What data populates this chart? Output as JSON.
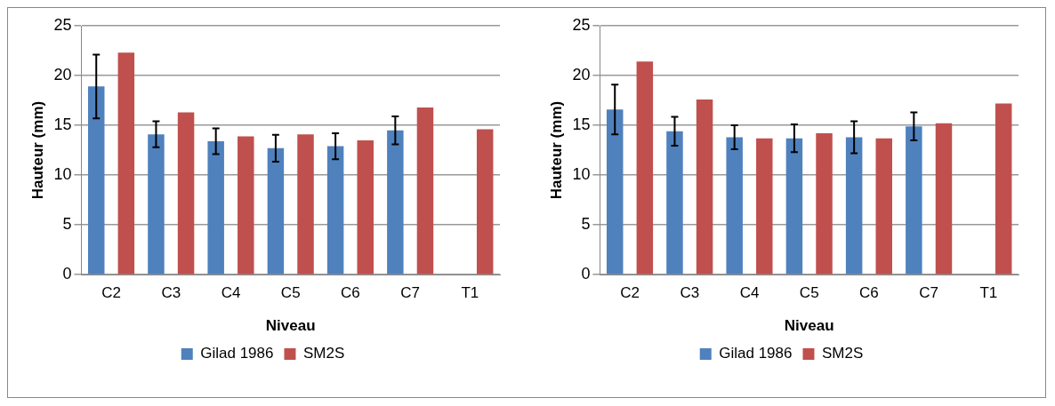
{
  "chart_data": [
    {
      "type": "bar",
      "xlabel": "Niveau",
      "ylabel": "Hauteur (mm)",
      "categories": [
        "C2",
        "C3",
        "C4",
        "C5",
        "C6",
        "C7",
        "T1"
      ],
      "ylim": [
        0,
        25
      ],
      "yticks": [
        0,
        5,
        10,
        15,
        20,
        25
      ],
      "grid": "y",
      "legend": "bottom",
      "series": [
        {
          "name": "Gilad 1986",
          "color": "#4f81bd",
          "values": [
            18.9,
            14.1,
            13.4,
            12.7,
            12.9,
            14.5,
            null
          ],
          "errors": [
            3.2,
            1.3,
            1.3,
            1.35,
            1.3,
            1.4,
            null
          ]
        },
        {
          "name": "SM2S",
          "color": "#c0504d",
          "values": [
            22.3,
            16.3,
            13.9,
            14.1,
            13.5,
            16.8,
            14.6
          ]
        }
      ]
    },
    {
      "type": "bar",
      "xlabel": "Niveau",
      "ylabel": "Hauteur (mm)",
      "categories": [
        "C2",
        "C3",
        "C4",
        "C5",
        "C6",
        "C7",
        "T1"
      ],
      "ylim": [
        0,
        25
      ],
      "yticks": [
        0,
        5,
        10,
        15,
        20,
        25
      ],
      "grid": "y",
      "legend": "bottom",
      "series": [
        {
          "name": "Gilad 1986",
          "color": "#4f81bd",
          "values": [
            16.6,
            14.4,
            13.8,
            13.7,
            13.8,
            14.9,
            null
          ],
          "errors": [
            2.5,
            1.45,
            1.2,
            1.4,
            1.6,
            1.4,
            null
          ]
        },
        {
          "name": "SM2S",
          "color": "#c0504d",
          "values": [
            21.4,
            17.6,
            13.7,
            14.2,
            13.7,
            15.2,
            17.2
          ]
        }
      ]
    }
  ]
}
